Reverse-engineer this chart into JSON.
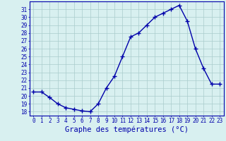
{
  "x": [
    0,
    1,
    2,
    3,
    4,
    5,
    6,
    7,
    8,
    9,
    10,
    11,
    12,
    13,
    14,
    15,
    16,
    17,
    18,
    19,
    20,
    21,
    22,
    23
  ],
  "y": [
    20.5,
    20.5,
    19.8,
    19.0,
    18.5,
    18.3,
    18.1,
    18.0,
    19.0,
    21.0,
    22.5,
    25.0,
    27.5,
    28.0,
    29.0,
    30.0,
    30.5,
    31.0,
    31.5,
    29.5,
    26.0,
    23.5,
    21.5,
    21.5
  ],
  "xlabel": "Graphe des températures (°C)",
  "ylim": [
    17.5,
    32.0
  ],
  "yticks": [
    18,
    19,
    20,
    21,
    22,
    23,
    24,
    25,
    26,
    27,
    28,
    29,
    30,
    31
  ],
  "xlim": [
    -0.5,
    23.5
  ],
  "line_color": "#0000aa",
  "marker": "+",
  "bg_color": "#d8f0f0",
  "grid_color": "#aacccc",
  "label_color": "#0000aa",
  "axis_color": "#0000aa",
  "tick_label_fontsize": 5.5,
  "xlabel_fontsize": 7.5
}
